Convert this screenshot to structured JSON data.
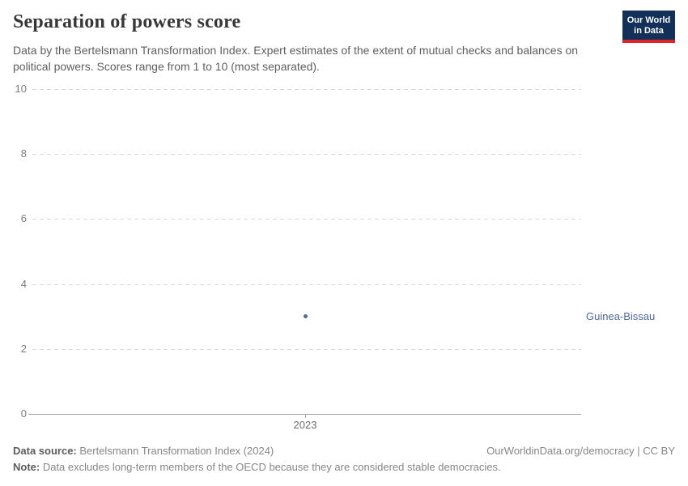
{
  "header": {
    "title": "Separation of powers score",
    "subtitle": "Data by the Bertelsmann Transformation Index. Expert estimates of the extent of mutual checks and balances on political powers. Scores range from 1 to 10 (most separated).",
    "logo": {
      "line1": "Our World",
      "line2": "in Data",
      "bg_color": "#12305a",
      "bar_color": "#e0242a"
    }
  },
  "chart_data": {
    "type": "scatter",
    "title": "Separation of powers score",
    "series": [
      {
        "name": "Guinea-Bissau",
        "points": [
          {
            "x": 2023,
            "y": 3
          }
        ],
        "color": "#4C6A9C"
      }
    ],
    "x_ticks": [
      "2023"
    ],
    "y_ticks": [
      0,
      2,
      4,
      6,
      8,
      10
    ],
    "ylim": [
      0,
      10
    ],
    "xlabel": "",
    "ylabel": "",
    "grid": "horizontal-dashed",
    "legend": "entity-label-right",
    "gridline_color": "#d9d9d9",
    "axis_color": "#a2a2a2"
  },
  "footer": {
    "source_label": "Data source:",
    "source_text": " Bertelsmann Transformation Index (2024)",
    "rights": "OurWorldinData.org/democracy | CC BY",
    "note_label": "Note:",
    "note_text": " Data excludes long-term members of the OECD because they are considered stable democracies."
  }
}
